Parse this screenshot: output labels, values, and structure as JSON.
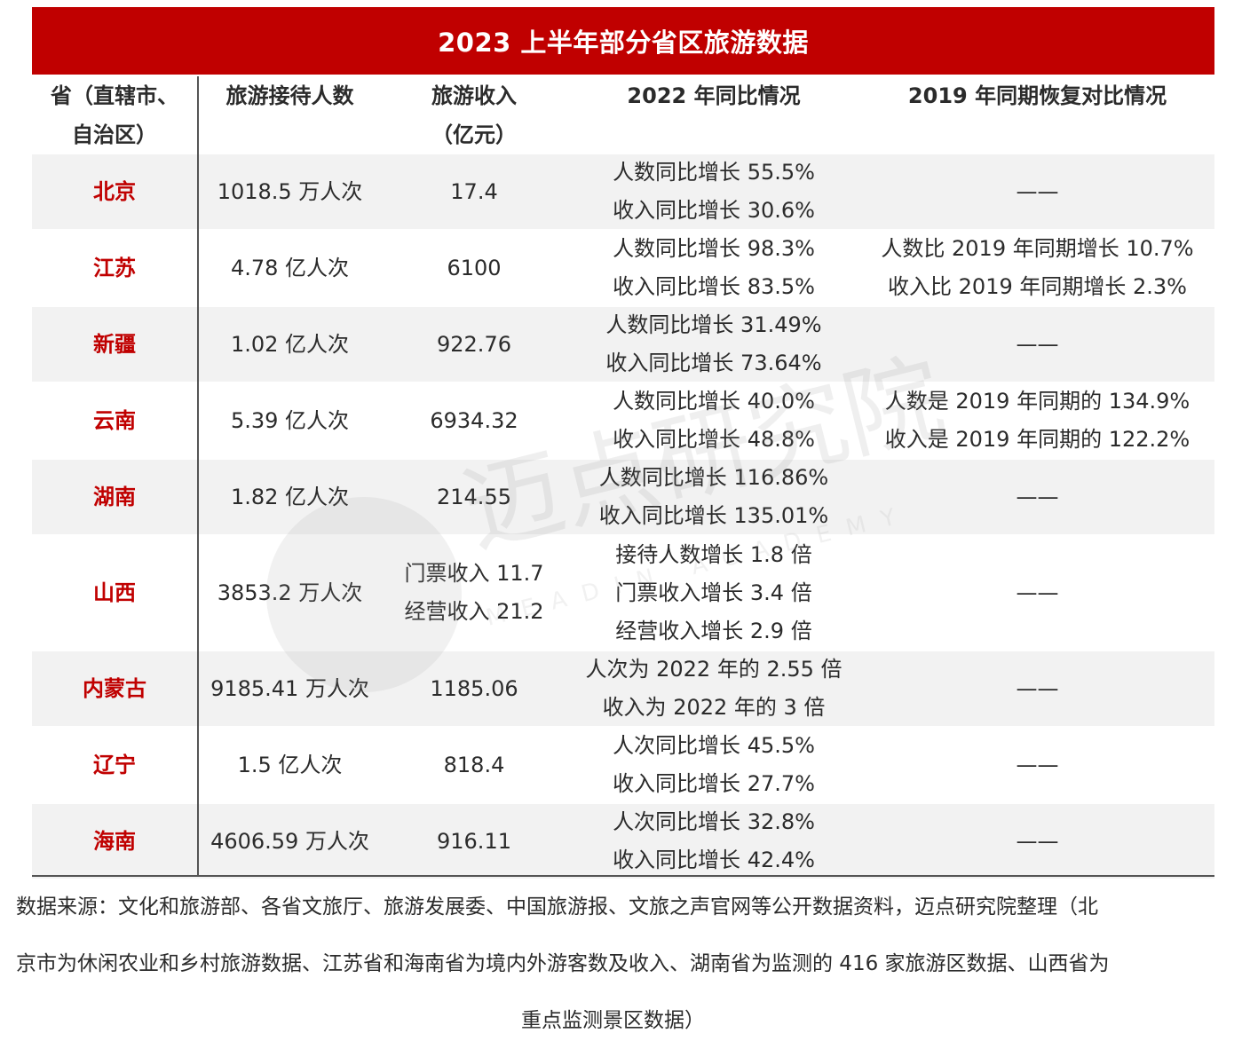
{
  "title": "2023 上半年部分省区旅游数据",
  "headers": {
    "province_line1": "省（直辖市、",
    "province_line2": "自治区）",
    "visitors": "旅游接待人数",
    "revenue_line1": "旅游收入",
    "revenue_line2": "（亿元）",
    "yoy2022": "2022 年同比情况",
    "vs2019": "2019 年同期恢复对比情况"
  },
  "rows": [
    {
      "province": "北京",
      "visitors": "1018.5 万人次",
      "revenue": [
        "17.4"
      ],
      "yoy": [
        "人数同比增长 55.5%",
        "收入同比增长 30.6%"
      ],
      "vs2019": [
        "——"
      ]
    },
    {
      "province": "江苏",
      "visitors": "4.78 亿人次",
      "revenue": [
        "6100"
      ],
      "yoy": [
        "人数同比增长 98.3%",
        "收入同比增长 83.5%"
      ],
      "vs2019": [
        "人数比 2019 年同期增长 10.7%",
        "收入比 2019 年同期增长 2.3%"
      ]
    },
    {
      "province": "新疆",
      "visitors": "1.02 亿人次",
      "revenue": [
        "922.76"
      ],
      "yoy": [
        "人数同比增长 31.49%",
        "收入同比增长 73.64%"
      ],
      "vs2019": [
        "——"
      ]
    },
    {
      "province": "云南",
      "visitors": "5.39 亿人次",
      "revenue": [
        "6934.32"
      ],
      "yoy": [
        "人数同比增长 40.0%",
        "收入同比增长 48.8%"
      ],
      "vs2019": [
        "人数是 2019 年同期的 134.9%",
        "收入是 2019 年同期的 122.2%"
      ]
    },
    {
      "province": "湖南",
      "visitors": "1.82 亿人次",
      "revenue": [
        "214.55"
      ],
      "yoy": [
        "人数同比增长 116.86%",
        "收入同比增长 135.01%"
      ],
      "vs2019": [
        "——"
      ]
    },
    {
      "province": "山西",
      "visitors": "3853.2 万人次",
      "revenue": [
        "门票收入 11.7",
        "经营收入 21.2"
      ],
      "yoy": [
        "接待人数增长 1.8 倍",
        "门票收入增长 3.4 倍",
        "经营收入增长 2.9 倍"
      ],
      "vs2019": [
        "——"
      ]
    },
    {
      "province": "内蒙古",
      "visitors": "9185.41 万人次",
      "revenue": [
        "1185.06"
      ],
      "yoy": [
        "人次为 2022 年的 2.55 倍",
        "收入为 2022 年的 3 倍"
      ],
      "vs2019": [
        "——"
      ]
    },
    {
      "province": "辽宁",
      "visitors": "1.5 亿人次",
      "revenue": [
        "818.4"
      ],
      "yoy": [
        "人次同比增长 45.5%",
        "收入同比增长 27.7%"
      ],
      "vs2019": [
        "——"
      ]
    },
    {
      "province": "海南",
      "visitors": "4606.59 万人次",
      "revenue": [
        "916.11"
      ],
      "yoy": [
        "人次同比增长 32.8%",
        "收入同比增长 42.4%"
      ],
      "vs2019": [
        "——"
      ]
    }
  ],
  "watermark": {
    "name": "迈点研究院",
    "subtitle": "MEADIN ACADEMY"
  },
  "footnote": [
    "数据来源：文化和旅游部、各省文旅厅、旅游发展委、中国旅游报、文旅之声官网等公开数据资料，迈点研究院整理（北",
    "京市为休闲农业和乡村旅游数据、江苏省和海南省为境内外游客数及收入、湖南省为监测的 416 家旅游区数据、山西省为",
    "重点监测景区数据）"
  ],
  "colors": {
    "title_bg": "#c00000",
    "province_text": "#c00000",
    "row_shade": "#f2f2f2"
  }
}
